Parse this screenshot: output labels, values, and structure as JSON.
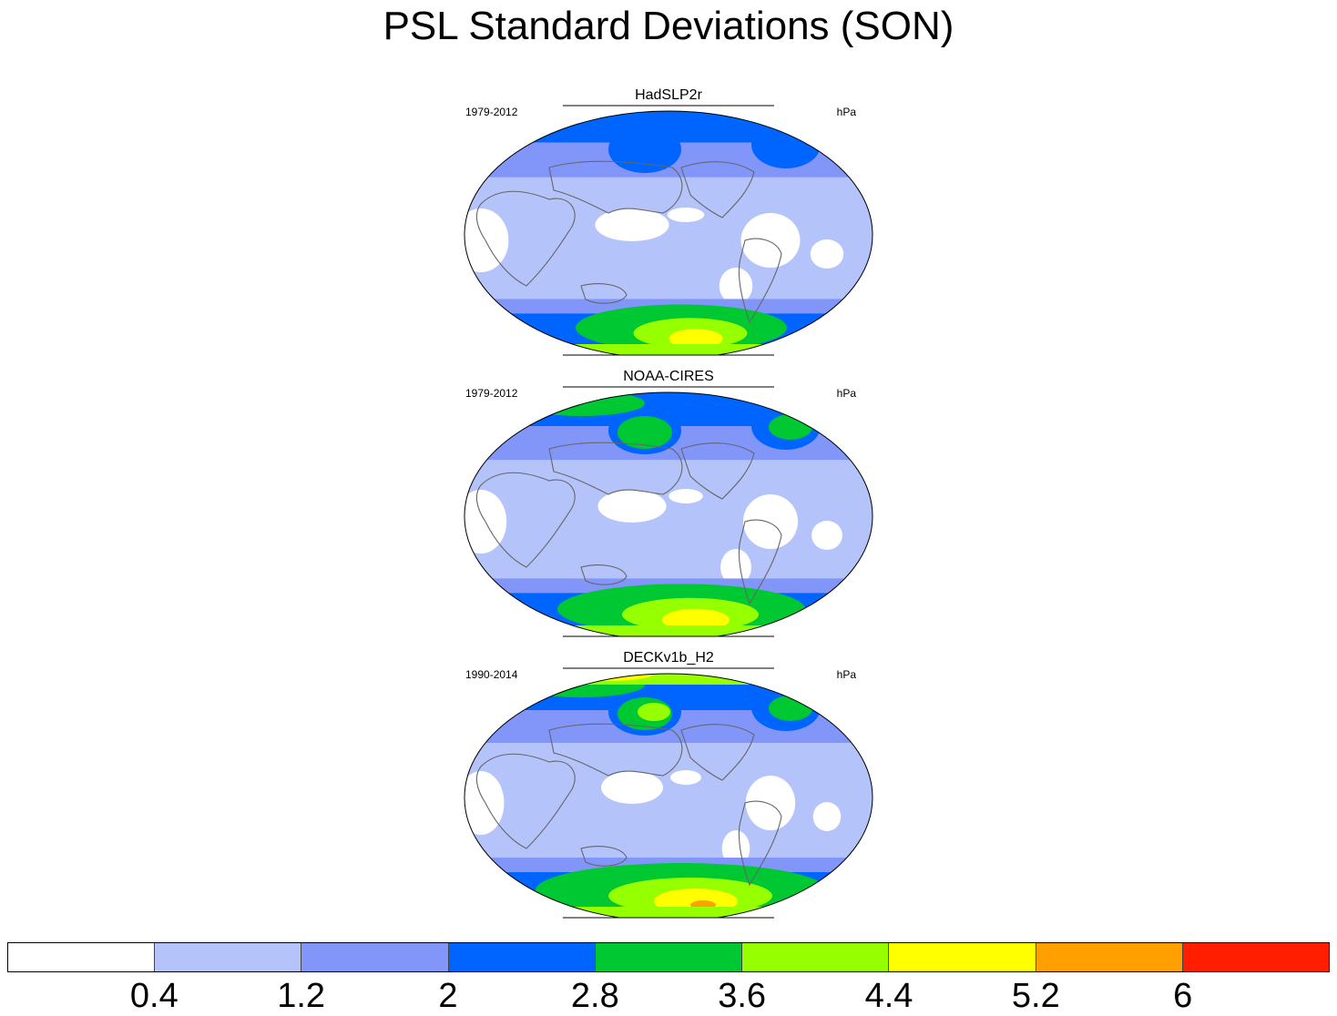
{
  "title": "PSL Standard Deviations (SON)",
  "panels": [
    {
      "name": "HadSLP2r",
      "period": "1979-2012",
      "units": "hPa",
      "intensity": 0.45
    },
    {
      "name": "NOAA-CIRES",
      "period": "1979-2012",
      "units": "hPa",
      "intensity": 0.7
    },
    {
      "name": "DECKv1b_H2",
      "period": "1990-2014",
      "units": "hPa",
      "intensity": 1.0
    }
  ],
  "colorbar": {
    "colors": [
      "#ffffff",
      "#b4c3fa",
      "#8296fa",
      "#0064ff",
      "#00c832",
      "#96ff00",
      "#ffff00",
      "#ffa000",
      "#ff1e00"
    ],
    "labels": [
      "0.4",
      "1.2",
      "2",
      "2.8",
      "3.6",
      "4.4",
      "5.2",
      "6"
    ]
  }
}
